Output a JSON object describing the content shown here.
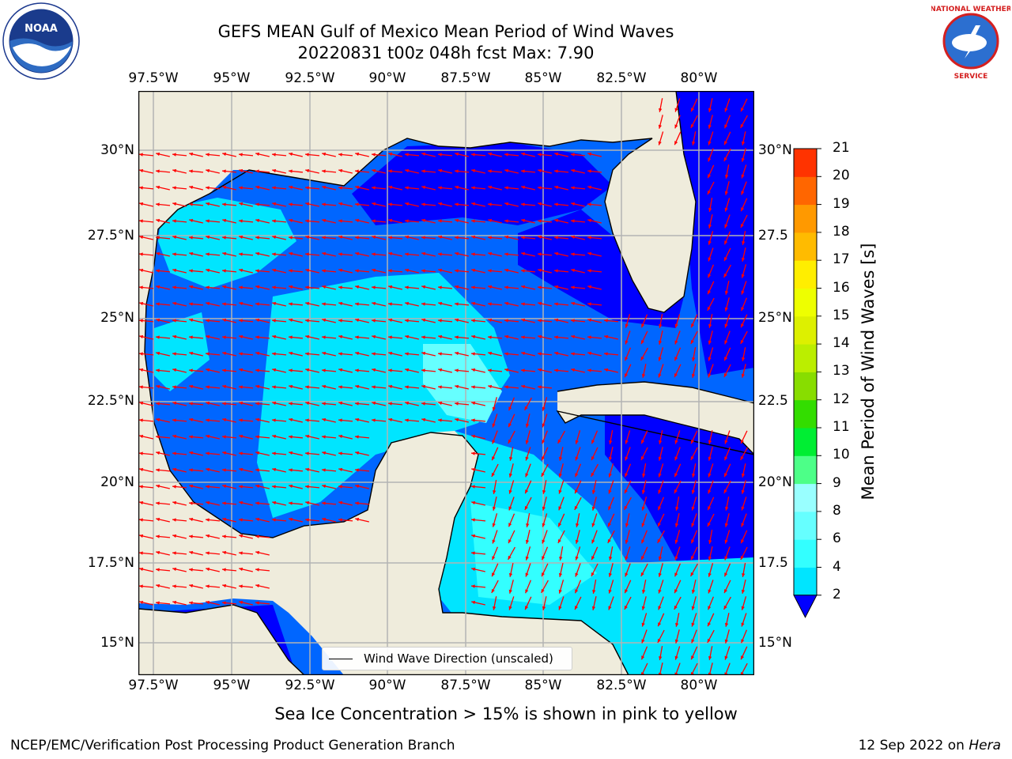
{
  "title": {
    "line1": "GEFS MEAN Gulf of Mexico Mean Period of Wind Waves",
    "line2": "20220831 t00z 048h fcst   Max: 7.90"
  },
  "axes": {
    "lon_ticks": [
      "97.5°W",
      "95°W",
      "92.5°W",
      "90°W",
      "87.5°W",
      "85°W",
      "82.5°W",
      "80°W"
    ],
    "lat_ticks": [
      "30°N",
      "27.5°N",
      "25°N",
      "22.5°N",
      "20°N",
      "17.5°N",
      "15°N"
    ],
    "lat_ticks_right": [
      "30°N",
      "27.5",
      "25°N",
      "22.5",
      "20°N",
      "17.5",
      "15°N"
    ],
    "lon_range": [
      -98,
      -78.2
    ],
    "lat_range": [
      14,
      31.6
    ],
    "grid": true
  },
  "colorbar": {
    "label": "Mean Period of Wind Waves [s]",
    "ticks": [
      "2",
      "4",
      "6",
      "8",
      "9",
      "10",
      "11",
      "12",
      "13",
      "14",
      "15",
      "16",
      "17",
      "18",
      "19",
      "20",
      "21"
    ],
    "colors": [
      "#0066ff",
      "#00e5ff",
      "#33ffff",
      "#66ffff",
      "#99ffff",
      "#4dff88",
      "#00ee33",
      "#33dd00",
      "#88dd00",
      "#bbee00",
      "#ddf000",
      "#eeff00",
      "#ffee00",
      "#ffbb00",
      "#ff9900",
      "#ff6600",
      "#ff3300",
      "#ff0000"
    ],
    "under_color": "#0000ff"
  },
  "legend": {
    "label": "Wind Wave Direction (unscaled)"
  },
  "note": "Sea Ice Concentration > 15% is shown in pink to yellow",
  "footer": {
    "left": "NCEP/EMC/Verification Post Processing Product Generation Branch",
    "date": "12 Sep 2022 on ",
    "machine": "Hera"
  },
  "logos": {
    "noaa": "NOAA",
    "nws": "NATIONAL WEATHER SERVICE"
  },
  "colors": {
    "land": "#efecdc",
    "grid": "#b3b3b3",
    "arrow": "#ff0000"
  }
}
